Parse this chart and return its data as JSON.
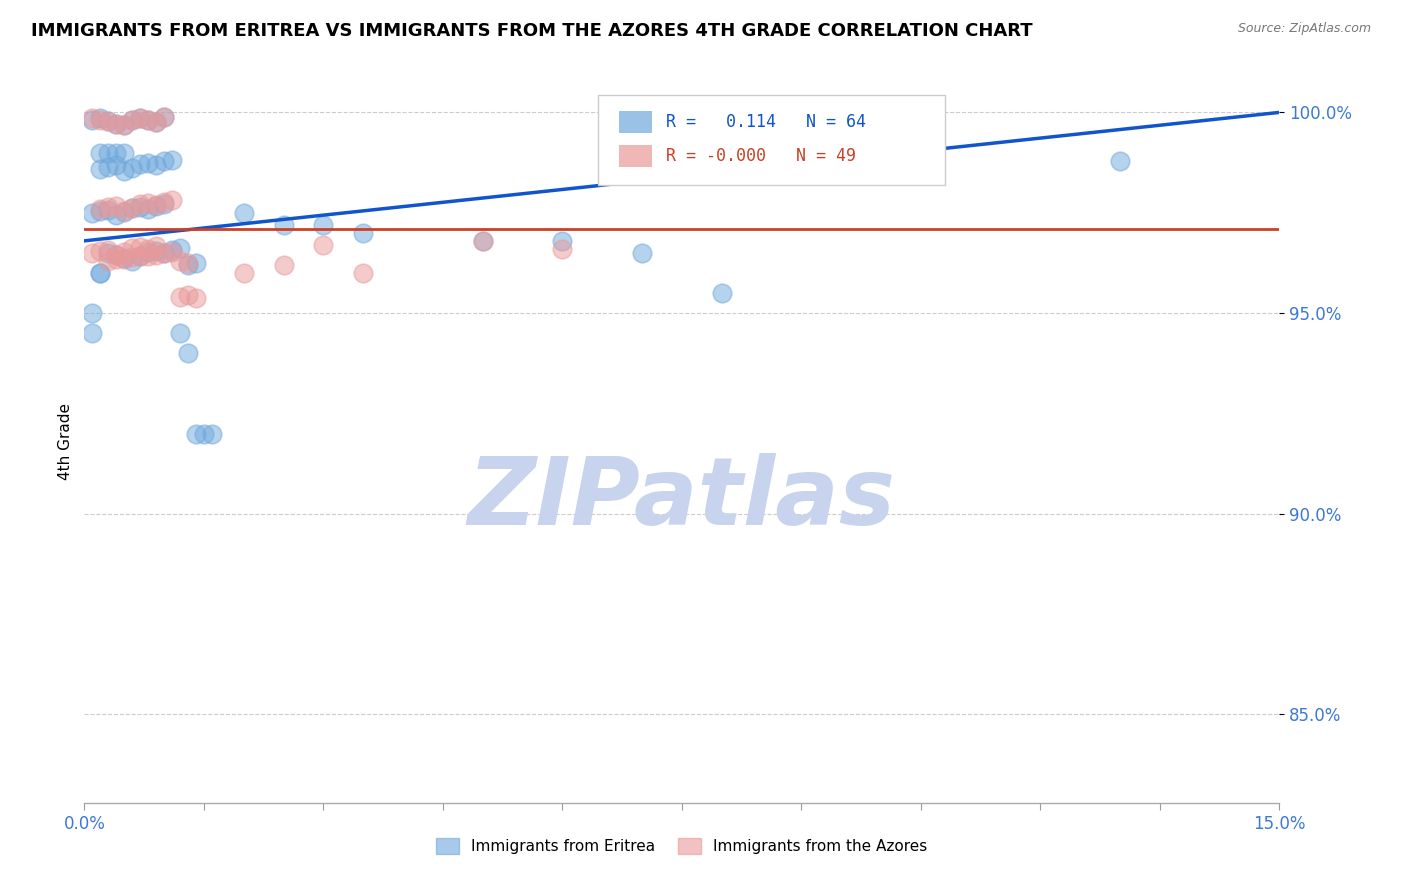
{
  "title": "IMMIGRANTS FROM ERITREA VS IMMIGRANTS FROM THE AZORES 4TH GRADE CORRELATION CHART",
  "source_text": "Source: ZipAtlas.com",
  "ylabel": "4th Grade",
  "xlim": [
    0.0,
    0.15
  ],
  "ylim": [
    0.828,
    1.008
  ],
  "xticks": [
    0.0,
    0.015,
    0.03,
    0.045,
    0.06,
    0.075,
    0.09,
    0.105,
    0.12,
    0.135,
    0.15
  ],
  "xticklabels": [
    "0.0%",
    "",
    "",
    "",
    "",
    "",
    "",
    "",
    "",
    "",
    "15.0%"
  ],
  "yticks": [
    0.85,
    0.9,
    0.95,
    1.0
  ],
  "yticklabels": [
    "85.0%",
    "90.0%",
    "95.0%",
    "100.0%"
  ],
  "blue_color": "#6fa8dc",
  "pink_color": "#ea9999",
  "blue_line_color": "#1155cc",
  "pink_line_color": "#cc4125",
  "legend_R_blue": "0.114",
  "legend_N_blue": "64",
  "legend_R_pink": "-0.000",
  "legend_N_pink": "49",
  "legend_label_blue": "Immigrants from Eritrea",
  "legend_label_pink": "Immigrants from the Azores",
  "watermark": "ZIPatlas",
  "blue_scatter_x": [
    0.001,
    0.002,
    0.003,
    0.004,
    0.005,
    0.006,
    0.007,
    0.008,
    0.009,
    0.01,
    0.002,
    0.003,
    0.004,
    0.005,
    0.006,
    0.007,
    0.008,
    0.009,
    0.01,
    0.011,
    0.001,
    0.002,
    0.003,
    0.004,
    0.005,
    0.006,
    0.007,
    0.008,
    0.009,
    0.01,
    0.003,
    0.004,
    0.005,
    0.006,
    0.007,
    0.008,
    0.009,
    0.01,
    0.011,
    0.012,
    0.013,
    0.014,
    0.02,
    0.025,
    0.03,
    0.035,
    0.05,
    0.06,
    0.07,
    0.08,
    0.13,
    0.012,
    0.013,
    0.014,
    0.015,
    0.016,
    0.002,
    0.003,
    0.004,
    0.005,
    0.001,
    0.001,
    0.002,
    0.002
  ],
  "blue_scatter_y": [
    0.998,
    0.9985,
    0.9978,
    0.9972,
    0.9968,
    0.998,
    0.9985,
    0.9982,
    0.9976,
    0.9988,
    0.986,
    0.9865,
    0.9868,
    0.9855,
    0.9862,
    0.9872,
    0.9875,
    0.9869,
    0.9878,
    0.9882,
    0.975,
    0.9755,
    0.9758,
    0.9745,
    0.9752,
    0.9762,
    0.9765,
    0.9759,
    0.9768,
    0.9772,
    0.965,
    0.9645,
    0.9638,
    0.963,
    0.9642,
    0.9652,
    0.9655,
    0.9649,
    0.9658,
    0.9662,
    0.962,
    0.9625,
    0.975,
    0.972,
    0.972,
    0.97,
    0.968,
    0.968,
    0.965,
    0.955,
    0.988,
    0.945,
    0.94,
    0.92,
    0.92,
    0.92,
    0.99,
    0.99,
    0.99,
    0.99,
    0.95,
    0.945,
    0.96,
    0.96
  ],
  "pink_scatter_x": [
    0.001,
    0.002,
    0.003,
    0.004,
    0.005,
    0.006,
    0.007,
    0.008,
    0.009,
    0.01,
    0.002,
    0.003,
    0.004,
    0.005,
    0.006,
    0.007,
    0.008,
    0.009,
    0.01,
    0.011,
    0.001,
    0.002,
    0.003,
    0.004,
    0.005,
    0.006,
    0.007,
    0.008,
    0.009,
    0.012,
    0.013,
    0.014,
    0.02,
    0.025,
    0.03,
    0.035,
    0.05,
    0.06,
    0.003,
    0.004,
    0.005,
    0.006,
    0.007,
    0.008,
    0.009,
    0.01,
    0.011,
    0.012,
    0.013
  ],
  "pink_scatter_y": [
    0.9985,
    0.998,
    0.9978,
    0.9972,
    0.9968,
    0.998,
    0.9985,
    0.9982,
    0.9976,
    0.9988,
    0.976,
    0.9765,
    0.9768,
    0.9755,
    0.9762,
    0.9772,
    0.9775,
    0.9769,
    0.9778,
    0.9782,
    0.965,
    0.9655,
    0.9658,
    0.9645,
    0.9652,
    0.9662,
    0.9665,
    0.9659,
    0.9668,
    0.954,
    0.9545,
    0.9538,
    0.96,
    0.962,
    0.967,
    0.96,
    0.968,
    0.966,
    0.963,
    0.9635,
    0.9635,
    0.964,
    0.9642,
    0.9642,
    0.9645,
    0.965,
    0.9652,
    0.963,
    0.9625
  ],
  "blue_trend_x": [
    0.0,
    0.15
  ],
  "blue_trend_y": [
    0.968,
    1.0
  ],
  "pink_trend_x": [
    0.0,
    0.15
  ],
  "pink_trend_y": [
    0.971,
    0.971
  ],
  "grid_color": "#cccccc",
  "title_fontsize": 13,
  "axis_color": "#3c78d8",
  "watermark_color": "#c8d4ee",
  "watermark_fontsize": 68
}
